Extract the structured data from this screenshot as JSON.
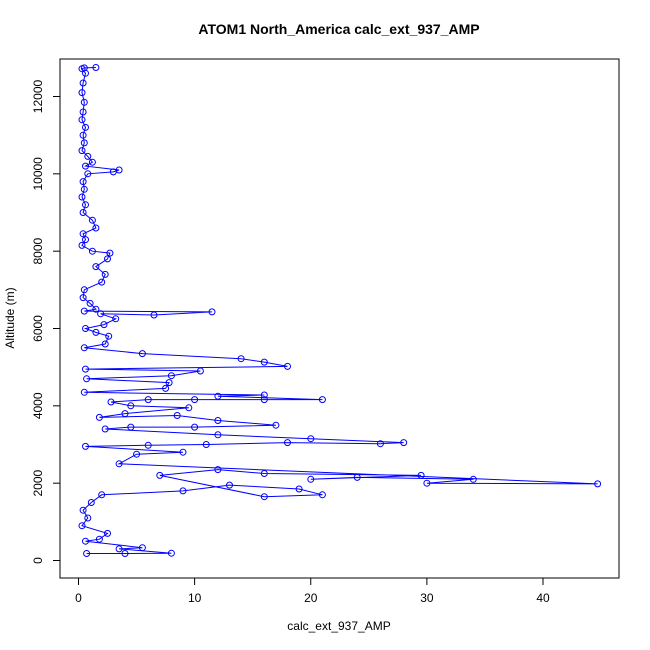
{
  "chart_data": {
    "type": "scatter",
    "title": "ATOM1 North_America calc_ext_937_AMP",
    "xlabel": "calc_ext_937_AMP",
    "ylabel": "Altitude (m)",
    "xlim": [
      0,
      45
    ],
    "ylim": [
      0,
      12800
    ],
    "x_ticks": [
      0,
      10,
      20,
      30,
      40
    ],
    "x_tick_labels": [
      "0",
      "10",
      "20",
      "30",
      "40"
    ],
    "y_ticks": [
      0,
      2000,
      4000,
      6000,
      8000,
      10000,
      12000
    ],
    "y_tick_labels": [
      "0",
      "2000",
      "4000",
      "6000",
      "8000",
      "10000",
      "12000"
    ],
    "grid": false,
    "legend": "none",
    "marker": "open-circle",
    "connected_line": true,
    "color": "#0000ff",
    "series": [
      {
        "values": [
          [
            1.5,
            12750
          ],
          [
            0.5,
            12740
          ],
          [
            0.3,
            12720
          ],
          [
            0.6,
            12600
          ],
          [
            0.4,
            12350
          ],
          [
            0.3,
            12100
          ],
          [
            0.5,
            11850
          ],
          [
            0.4,
            11600
          ],
          [
            0.3,
            11400
          ],
          [
            0.6,
            11200
          ],
          [
            0.4,
            11000
          ],
          [
            0.5,
            10800
          ],
          [
            0.3,
            10600
          ],
          [
            0.8,
            10450
          ],
          [
            1.2,
            10300
          ],
          [
            0.6,
            10200
          ],
          [
            3.5,
            10100
          ],
          [
            3.0,
            10050
          ],
          [
            0.8,
            10000
          ],
          [
            0.4,
            9800
          ],
          [
            0.5,
            9600
          ],
          [
            0.3,
            9400
          ],
          [
            0.6,
            9200
          ],
          [
            0.4,
            9000
          ],
          [
            1.2,
            8800
          ],
          [
            1.5,
            8600
          ],
          [
            0.4,
            8450
          ],
          [
            0.6,
            8300
          ],
          [
            0.3,
            8150
          ],
          [
            1.2,
            8000
          ],
          [
            2.7,
            7950
          ],
          [
            2.5,
            7800
          ],
          [
            1.5,
            7600
          ],
          [
            2.3,
            7400
          ],
          [
            2.0,
            7200
          ],
          [
            0.5,
            7000
          ],
          [
            0.4,
            6800
          ],
          [
            1.0,
            6650
          ],
          [
            1.5,
            6500
          ],
          [
            0.5,
            6450
          ],
          [
            11.5,
            6430
          ],
          [
            6.5,
            6350
          ],
          [
            1.9,
            6380
          ],
          [
            3.2,
            6250
          ],
          [
            2.2,
            6100
          ],
          [
            0.6,
            6000
          ],
          [
            1.5,
            5900
          ],
          [
            2.6,
            5800
          ],
          [
            2.3,
            5600
          ],
          [
            0.5,
            5500
          ],
          [
            5.5,
            5350
          ],
          [
            14.0,
            5220
          ],
          [
            16.0,
            5130
          ],
          [
            18.0,
            5020
          ],
          [
            0.6,
            4950
          ],
          [
            10.5,
            4900
          ],
          [
            8.0,
            4780
          ],
          [
            0.7,
            4700
          ],
          [
            7.8,
            4600
          ],
          [
            7.5,
            4450
          ],
          [
            0.5,
            4350
          ],
          [
            16.0,
            4280
          ],
          [
            12.0,
            4250
          ],
          [
            21.0,
            4160
          ],
          [
            16.0,
            4160
          ],
          [
            10.0,
            4160
          ],
          [
            6.0,
            4160
          ],
          [
            2.8,
            4100
          ],
          [
            4.5,
            4000
          ],
          [
            9.5,
            3950
          ],
          [
            4.0,
            3800
          ],
          [
            1.8,
            3700
          ],
          [
            8.5,
            3750
          ],
          [
            12.0,
            3620
          ],
          [
            17.0,
            3500
          ],
          [
            10.0,
            3450
          ],
          [
            4.5,
            3450
          ],
          [
            2.3,
            3400
          ],
          [
            12.0,
            3250
          ],
          [
            20.0,
            3150
          ],
          [
            28.0,
            3050
          ],
          [
            26.0,
            3020
          ],
          [
            18.0,
            3050
          ],
          [
            11.0,
            3000
          ],
          [
            6.0,
            2980
          ],
          [
            0.6,
            2950
          ],
          [
            9.0,
            2800
          ],
          [
            5.0,
            2750
          ],
          [
            3.5,
            2500
          ],
          [
            44.7,
            1980
          ],
          [
            30.0,
            2000
          ],
          [
            34.0,
            2100
          ],
          [
            24.0,
            2150
          ],
          [
            20.0,
            2100
          ],
          [
            29.5,
            2200
          ],
          [
            16.0,
            2250
          ],
          [
            12.0,
            2350
          ],
          [
            7.0,
            2200
          ],
          [
            16.0,
            1650
          ],
          [
            21.0,
            1700
          ],
          [
            19.0,
            1850
          ],
          [
            13.0,
            1950
          ],
          [
            9.0,
            1800
          ],
          [
            2.0,
            1700
          ],
          [
            1.1,
            1500
          ],
          [
            0.4,
            1300
          ],
          [
            0.8,
            1100
          ],
          [
            0.3,
            900
          ],
          [
            2.5,
            700
          ],
          [
            1.8,
            550
          ],
          [
            0.6,
            500
          ],
          [
            5.5,
            330
          ],
          [
            3.5,
            300
          ],
          [
            8.0,
            190
          ],
          [
            4.0,
            180
          ],
          [
            0.7,
            180
          ]
        ]
      }
    ]
  }
}
